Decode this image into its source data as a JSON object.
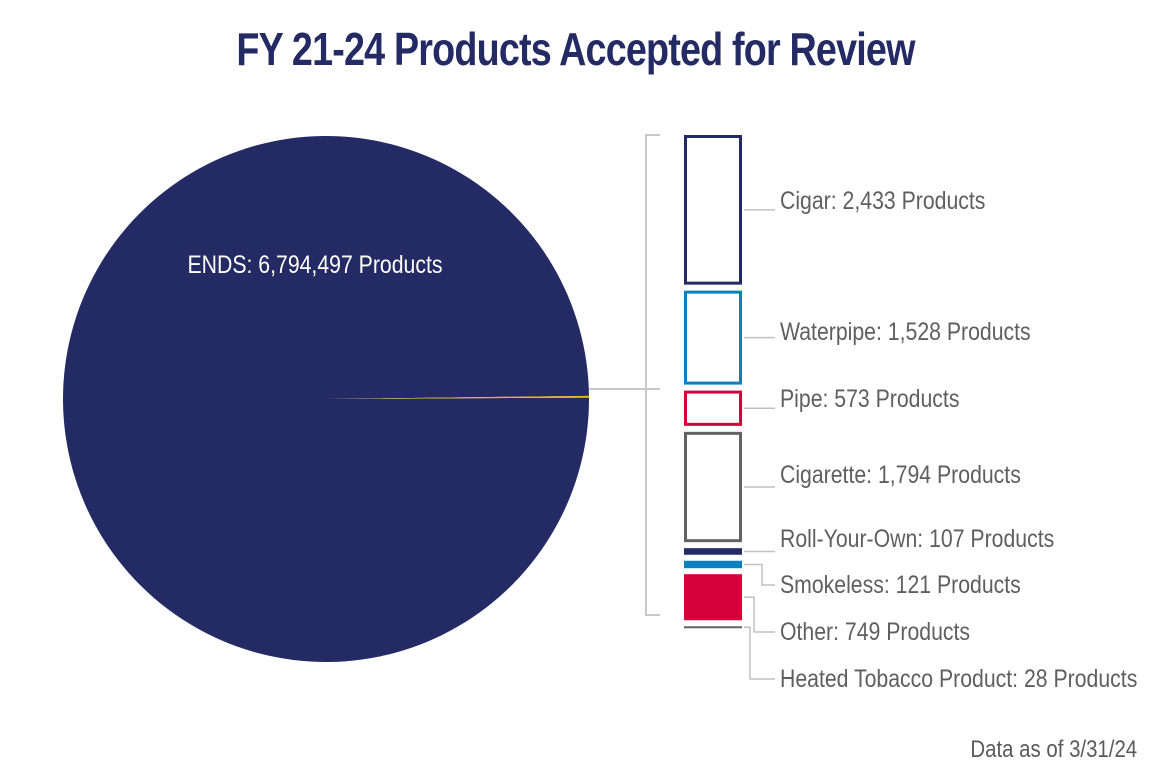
{
  "title": "FY 21-24 Products Accepted for Review",
  "note": "Data as of 3/31/24",
  "chart_data": {
    "type": "bar-of-pie",
    "title": "FY 21-24 Products Accepted for Review",
    "pie": [
      {
        "name": "ENDS",
        "value": 6794497,
        "label": "ENDS: 6,794,497 Products",
        "color": "#232a64"
      },
      {
        "name": "Other products (broken out in bar)",
        "value": 7333,
        "color": "#e8b51a"
      }
    ],
    "bar": [
      {
        "name": "Cigar",
        "value": 2433,
        "label": "Cigar: 2,433 Products",
        "color": "#232a64",
        "style": "outline"
      },
      {
        "name": "Waterpipe",
        "value": 1528,
        "label": "Waterpipe: 1,528 Products",
        "color": "#0a80c0",
        "style": "outline"
      },
      {
        "name": "Pipe",
        "value": 573,
        "label": "Pipe: 573 Products",
        "color": "#d6003a",
        "style": "outline"
      },
      {
        "name": "Cigarette",
        "value": 1794,
        "label": "Cigarette: 1,794 Products",
        "color": "#636363",
        "style": "outline"
      },
      {
        "name": "Roll-Your-Own",
        "value": 107,
        "label": "Roll-Your-Own: 107 Products",
        "color": "#232a64",
        "style": "fill"
      },
      {
        "name": "Smokeless",
        "value": 121,
        "label": "Smokeless: 121 Products",
        "color": "#0a80c0",
        "style": "fill"
      },
      {
        "name": "Other",
        "value": 749,
        "label": "Other: 749 Products",
        "color": "#d6003a",
        "style": "fill"
      },
      {
        "name": "Heated Tobacco Product",
        "value": 28,
        "label": "Heated Tobacco Product: 28 Products",
        "color": "#636363",
        "style": "fill"
      }
    ]
  }
}
